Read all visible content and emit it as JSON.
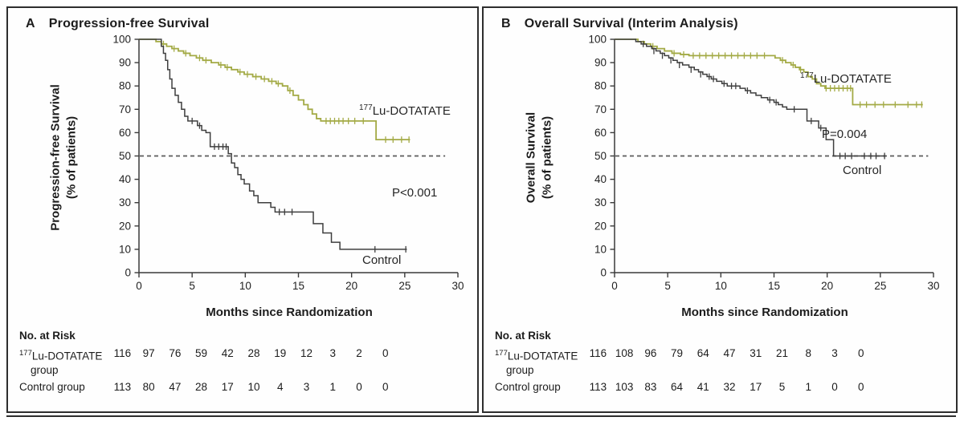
{
  "colors": {
    "lu_dotatate": "#a3aa45",
    "control": "#3e3e3e",
    "reference_dash": "#5a5a5a",
    "axis": "#3a3a3a"
  },
  "chart_data": [
    {
      "type": "line",
      "panel_letter": "A",
      "title": "Progression-free Survival",
      "xlabel": "Months since Randomization",
      "ylabel_line1": "Progression-free Survival",
      "ylabel_line2": "(% of patients)",
      "xlim": [
        0,
        30
      ],
      "ylim": [
        0,
        100
      ],
      "grid": false,
      "x_ticks": [
        0,
        5,
        10,
        15,
        20,
        25,
        30
      ],
      "y_ticks": [
        0,
        10,
        20,
        30,
        40,
        50,
        60,
        70,
        80,
        90,
        100
      ],
      "reference_line": {
        "y": 50,
        "x_start": 0,
        "x_end": 28.8,
        "style": "dashed"
      },
      "annotations": {
        "p_value": "P<0.001",
        "lu_sup": "177",
        "lu_main": "Lu-DOTATATE",
        "control": "Control"
      },
      "series": [
        {
          "name": "177Lu-DOTATATE",
          "color": "#a3aa45",
          "width": 1.8,
          "points": [
            [
              0,
              100
            ],
            [
              1.2,
              100
            ],
            [
              1.6,
              99
            ],
            [
              2.1,
              98
            ],
            [
              2.6,
              97
            ],
            [
              3.1,
              96
            ],
            [
              3.7,
              95
            ],
            [
              4.2,
              94
            ],
            [
              4.8,
              93
            ],
            [
              5.4,
              92
            ],
            [
              6.0,
              91
            ],
            [
              6.8,
              90
            ],
            [
              7.5,
              89
            ],
            [
              8.1,
              88
            ],
            [
              8.7,
              87
            ],
            [
              9.3,
              86
            ],
            [
              9.9,
              85
            ],
            [
              10.7,
              84
            ],
            [
              11.5,
              83
            ],
            [
              12.2,
              82
            ],
            [
              12.9,
              81
            ],
            [
              13.5,
              80
            ],
            [
              14.0,
              78
            ],
            [
              14.5,
              76
            ],
            [
              15.0,
              74
            ],
            [
              15.5,
              72
            ],
            [
              15.9,
              70
            ],
            [
              16.3,
              68
            ],
            [
              16.7,
              66
            ],
            [
              17.1,
              65
            ],
            [
              22.3,
              57
            ],
            [
              25.5,
              57
            ]
          ],
          "censor_marks": [
            [
              2.3,
              98
            ],
            [
              3.3,
              96
            ],
            [
              4.4,
              94
            ],
            [
              5.7,
              92
            ],
            [
              6.3,
              91
            ],
            [
              7.7,
              89
            ],
            [
              8.3,
              88
            ],
            [
              9.5,
              86
            ],
            [
              10.2,
              85
            ],
            [
              11.0,
              84
            ],
            [
              11.8,
              83
            ],
            [
              12.5,
              82
            ],
            [
              13.1,
              81
            ],
            [
              14.2,
              78
            ],
            [
              17.6,
              65
            ],
            [
              18.0,
              65
            ],
            [
              18.4,
              65
            ],
            [
              18.8,
              65
            ],
            [
              19.2,
              65
            ],
            [
              19.7,
              65
            ],
            [
              20.3,
              65
            ],
            [
              21.1,
              65
            ],
            [
              23.2,
              57
            ],
            [
              23.9,
              57
            ],
            [
              24.7,
              57
            ],
            [
              25.4,
              57
            ]
          ]
        },
        {
          "name": "Control",
          "color": "#3e3e3e",
          "width": 1.5,
          "points": [
            [
              0,
              100
            ],
            [
              1.9,
              100
            ],
            [
              2.1,
              97
            ],
            [
              2.3,
              94
            ],
            [
              2.5,
              91
            ],
            [
              2.7,
              87
            ],
            [
              2.9,
              83
            ],
            [
              3.1,
              79
            ],
            [
              3.4,
              76
            ],
            [
              3.7,
              73
            ],
            [
              4.0,
              70
            ],
            [
              4.3,
              67
            ],
            [
              4.6,
              65
            ],
            [
              5.5,
              63
            ],
            [
              5.9,
              61
            ],
            [
              6.3,
              60
            ],
            [
              6.7,
              54
            ],
            [
              8.4,
              51
            ],
            [
              8.7,
              47
            ],
            [
              9.0,
              45
            ],
            [
              9.3,
              42
            ],
            [
              9.6,
              40
            ],
            [
              9.9,
              38
            ],
            [
              10.4,
              35
            ],
            [
              10.8,
              33
            ],
            [
              11.2,
              30
            ],
            [
              12.4,
              28
            ],
            [
              12.8,
              26
            ],
            [
              16.4,
              21
            ],
            [
              17.3,
              17
            ],
            [
              18.1,
              13
            ],
            [
              18.9,
              10
            ],
            [
              25.2,
              10
            ]
          ],
          "censor_marks": [
            [
              5.0,
              65
            ],
            [
              5.7,
              63
            ],
            [
              7.1,
              54
            ],
            [
              7.5,
              54
            ],
            [
              7.9,
              54
            ],
            [
              8.2,
              54
            ],
            [
              13.2,
              26
            ],
            [
              13.7,
              26
            ],
            [
              14.4,
              26
            ],
            [
              22.2,
              10
            ],
            [
              25.1,
              10
            ]
          ]
        }
      ],
      "number_at_risk": {
        "heading": "No. at Risk",
        "timepoints": [
          0,
          3,
          6,
          9,
          12,
          15,
          18,
          21,
          24,
          27,
          30
        ],
        "rows": [
          {
            "label_sup": "177",
            "label_main": "Lu-DOTATATE",
            "label_line2": "group",
            "values": [
              116,
              97,
              76,
              59,
              42,
              28,
              19,
              12,
              3,
              2,
              0
            ]
          },
          {
            "label_sup": "",
            "label_main": "Control group",
            "label_line2": "",
            "values": [
              113,
              80,
              47,
              28,
              17,
              10,
              4,
              3,
              1,
              0,
              0
            ]
          }
        ]
      }
    },
    {
      "type": "line",
      "panel_letter": "B",
      "title": "Overall Survival (Interim Analysis)",
      "xlabel": "Months since Randomization",
      "ylabel_line1": "Overall Survival",
      "ylabel_line2": "(% of patients)",
      "xlim": [
        0,
        30
      ],
      "ylim": [
        0,
        100
      ],
      "grid": false,
      "x_ticks": [
        0,
        5,
        10,
        15,
        20,
        25,
        30
      ],
      "y_ticks": [
        0,
        10,
        20,
        30,
        40,
        50,
        60,
        70,
        80,
        90,
        100
      ],
      "reference_line": {
        "y": 50,
        "x_start": 0,
        "x_end": 29.5,
        "style": "dashed"
      },
      "annotations": {
        "p_value": "P=0.004",
        "lu_sup": "177",
        "lu_main": "Lu-DOTATATE",
        "control": "Control"
      },
      "series": [
        {
          "name": "177Lu-DOTATATE",
          "color": "#a3aa45",
          "width": 1.8,
          "points": [
            [
              0,
              100
            ],
            [
              1.8,
              100
            ],
            [
              2.2,
              99
            ],
            [
              2.8,
              98
            ],
            [
              3.4,
              97
            ],
            [
              4.0,
              96
            ],
            [
              4.7,
              95
            ],
            [
              5.4,
              94
            ],
            [
              6.2,
              93.5
            ],
            [
              7.0,
              93
            ],
            [
              14.6,
              93
            ],
            [
              15.1,
              92
            ],
            [
              15.6,
              91
            ],
            [
              16.1,
              90
            ],
            [
              16.6,
              89
            ],
            [
              17.0,
              88
            ],
            [
              17.4,
              87
            ],
            [
              17.8,
              86
            ],
            [
              18.2,
              84
            ],
            [
              18.6,
              83
            ],
            [
              19.0,
              81
            ],
            [
              19.4,
              80
            ],
            [
              19.8,
              79
            ],
            [
              22.4,
              72
            ],
            [
              29.0,
              72
            ]
          ],
          "censor_marks": [
            [
              3.6,
              97
            ],
            [
              5.6,
              94
            ],
            [
              6.5,
              93.5
            ],
            [
              7.4,
              93
            ],
            [
              8.0,
              93
            ],
            [
              8.6,
              93
            ],
            [
              9.2,
              93
            ],
            [
              9.8,
              93
            ],
            [
              10.4,
              93
            ],
            [
              11.0,
              93
            ],
            [
              11.6,
              93
            ],
            [
              12.2,
              93
            ],
            [
              12.8,
              93
            ],
            [
              13.4,
              93
            ],
            [
              14.1,
              93
            ],
            [
              15.8,
              91
            ],
            [
              16.8,
              89
            ],
            [
              17.5,
              87
            ],
            [
              19.9,
              79
            ],
            [
              20.3,
              79
            ],
            [
              20.7,
              79
            ],
            [
              21.1,
              79
            ],
            [
              21.5,
              79
            ],
            [
              21.9,
              79
            ],
            [
              22.2,
              79
            ],
            [
              23.1,
              72
            ],
            [
              23.7,
              72
            ],
            [
              24.5,
              72
            ],
            [
              25.3,
              72
            ],
            [
              26.4,
              72
            ],
            [
              27.6,
              72
            ],
            [
              28.4,
              72
            ],
            [
              28.9,
              72
            ]
          ]
        },
        {
          "name": "Control",
          "color": "#3e3e3e",
          "width": 1.5,
          "points": [
            [
              0,
              100
            ],
            [
              1.6,
              100
            ],
            [
              2.0,
              99
            ],
            [
              2.5,
              98
            ],
            [
              3.0,
              97
            ],
            [
              3.5,
              96
            ],
            [
              3.9,
              95
            ],
            [
              4.3,
              94
            ],
            [
              4.7,
              93
            ],
            [
              5.1,
              92
            ],
            [
              5.5,
              91
            ],
            [
              5.9,
              90
            ],
            [
              6.4,
              89
            ],
            [
              7.0,
              88
            ],
            [
              7.5,
              87
            ],
            [
              7.9,
              86
            ],
            [
              8.3,
              85
            ],
            [
              8.7,
              84
            ],
            [
              9.1,
              83
            ],
            [
              9.6,
              82
            ],
            [
              10.1,
              81
            ],
            [
              10.6,
              80
            ],
            [
              11.8,
              79
            ],
            [
              12.3,
              78
            ],
            [
              12.8,
              77
            ],
            [
              13.3,
              76
            ],
            [
              13.8,
              75
            ],
            [
              14.4,
              74
            ],
            [
              15.0,
              73
            ],
            [
              15.4,
              72
            ],
            [
              15.8,
              71
            ],
            [
              16.2,
              70
            ],
            [
              18.1,
              65
            ],
            [
              19.2,
              62
            ],
            [
              19.9,
              57
            ],
            [
              20.6,
              50
            ],
            [
              25.5,
              50
            ]
          ],
          "censor_marks": [
            [
              2.7,
              98
            ],
            [
              3.7,
              95
            ],
            [
              4.5,
              93
            ],
            [
              5.3,
              91
            ],
            [
              6.1,
              89
            ],
            [
              7.2,
              87
            ],
            [
              8.1,
              85
            ],
            [
              8.9,
              84
            ],
            [
              9.3,
              83
            ],
            [
              10.3,
              81
            ],
            [
              11.0,
              80
            ],
            [
              11.4,
              80
            ],
            [
              12.5,
              78
            ],
            [
              14.6,
              74
            ],
            [
              15.2,
              73
            ],
            [
              16.9,
              70
            ],
            [
              18.5,
              65
            ],
            [
              19.4,
              62
            ],
            [
              21.2,
              50
            ],
            [
              21.7,
              50
            ],
            [
              22.3,
              50
            ],
            [
              23.5,
              50
            ],
            [
              24.1,
              50
            ],
            [
              24.6,
              50
            ],
            [
              25.4,
              50
            ]
          ]
        }
      ],
      "number_at_risk": {
        "heading": "No. at Risk",
        "timepoints": [
          0,
          3,
          6,
          9,
          12,
          15,
          18,
          21,
          24,
          27,
          30
        ],
        "rows": [
          {
            "label_sup": "177",
            "label_main": "Lu-DOTATATE",
            "label_line2": "group",
            "values": [
              116,
              108,
              96,
              79,
              64,
              47,
              31,
              21,
              8,
              3,
              0
            ]
          },
          {
            "label_sup": "",
            "label_main": "Control group",
            "label_line2": "",
            "values": [
              113,
              103,
              83,
              64,
              41,
              32,
              17,
              5,
              1,
              0,
              0
            ]
          }
        ]
      }
    }
  ]
}
